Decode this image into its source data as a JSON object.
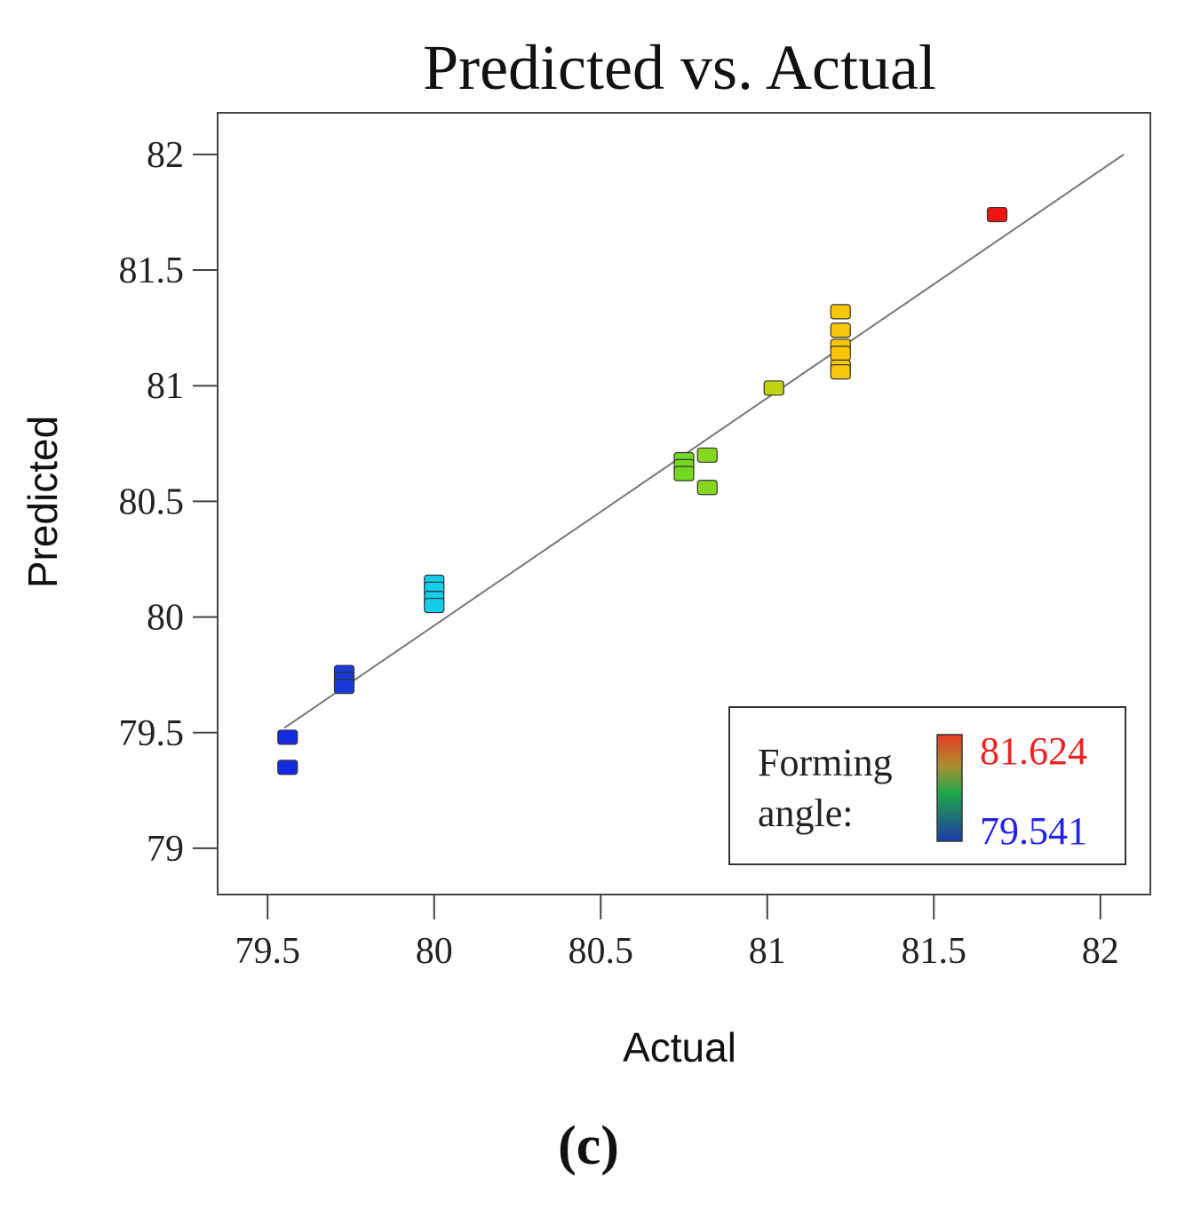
{
  "chart_data": {
    "type": "scatter",
    "title": "Predicted vs. Actual",
    "xlabel": "Actual",
    "ylabel": "Predicted",
    "xlim": [
      79.35,
      82.15
    ],
    "ylim": [
      78.8,
      82.18
    ],
    "xticks": [
      79.5,
      80,
      80.5,
      81,
      81.5,
      82
    ],
    "yticks": [
      79,
      79.5,
      80,
      80.5,
      81,
      81.5,
      82
    ],
    "xtick_labels": [
      "79.5",
      "80",
      "80.5",
      "81",
      "81.5",
      "82"
    ],
    "ytick_labels": [
      "79",
      "79.5",
      "80",
      "80.5",
      "81",
      "81.5",
      "82"
    ],
    "reference_line": {
      "from": [
        79.55,
        79.52
      ],
      "to": [
        82.07,
        82.0
      ],
      "color": "#777777"
    },
    "points": [
      {
        "x": 79.56,
        "y": 79.48
      },
      {
        "x": 79.56,
        "y": 79.35
      },
      {
        "x": 79.73,
        "y": 79.76
      },
      {
        "x": 79.73,
        "y": 79.73
      },
      {
        "x": 79.73,
        "y": 79.7
      },
      {
        "x": 80.0,
        "y": 80.15
      },
      {
        "x": 80.0,
        "y": 80.12
      },
      {
        "x": 80.0,
        "y": 80.08
      },
      {
        "x": 80.0,
        "y": 80.05
      },
      {
        "x": 80.75,
        "y": 80.68
      },
      {
        "x": 80.75,
        "y": 80.65
      },
      {
        "x": 80.75,
        "y": 80.62
      },
      {
        "x": 80.82,
        "y": 80.7
      },
      {
        "x": 80.82,
        "y": 80.56
      },
      {
        "x": 81.02,
        "y": 80.99
      },
      {
        "x": 81.22,
        "y": 81.32
      },
      {
        "x": 81.22,
        "y": 81.24
      },
      {
        "x": 81.22,
        "y": 81.17
      },
      {
        "x": 81.22,
        "y": 81.14
      },
      {
        "x": 81.22,
        "y": 81.08
      },
      {
        "x": 81.22,
        "y": 81.06
      },
      {
        "x": 81.69,
        "y": 81.74
      }
    ],
    "color_scale": {
      "label_line1": "Forming",
      "label_line2": "angle:",
      "max_label": "81.624",
      "min_label": "79.541",
      "max_label_color": "#ee2222",
      "min_label_color": "#2222ee",
      "gradient": [
        "#e83c22",
        "#a89030",
        "#1fa84a",
        "#1e6a7a",
        "#1a3ca8"
      ]
    }
  },
  "panel_label": "(c)"
}
